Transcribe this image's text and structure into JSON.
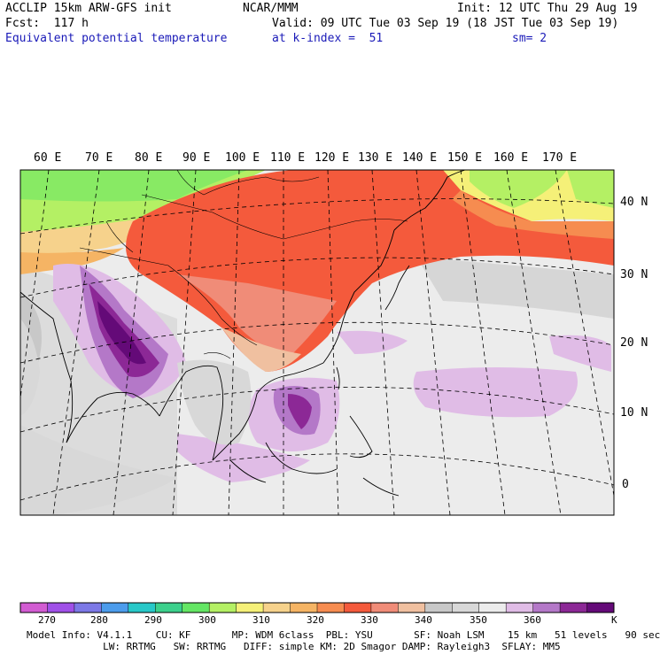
{
  "header": {
    "model": "ACCLIP 15km ARW-GFS init",
    "forecast": "Fcst:  117 h",
    "field": "Equivalent potential temperature",
    "org": "NCAR/MMM",
    "valid": "Valid: 09 UTC Tue 03 Sep 19 (18 JST Tue 03 Sep 19)",
    "level": "at k-index =  51",
    "init": "Init: 12 UTC Thu 29 Aug 19",
    "smoothing": "sm= 2"
  },
  "map": {
    "lon_labels": [
      "60 E",
      "70 E",
      "80 E",
      "90 E",
      "100 E",
      "110 E",
      "120 E",
      "130 E",
      "140 E",
      "150 E",
      "160 E",
      "170 E"
    ],
    "lat_labels": [
      "40 N",
      "30 N",
      "20 N",
      "10 N",
      "0"
    ]
  },
  "colorbar": {
    "unit": "K",
    "ticks": [
      "270",
      "280",
      "290",
      "300",
      "310",
      "320",
      "330",
      "340",
      "350",
      "360"
    ],
    "colors": [
      "#d25cd2",
      "#a050e8",
      "#7c78e6",
      "#4c9cec",
      "#28c8c8",
      "#3cd08c",
      "#64e664",
      "#b4f064",
      "#f5f078",
      "#f6d28c",
      "#f5b464",
      "#f68c50",
      "#f45a3c",
      "#f08c78",
      "#f0c0a0",
      "#c8c8c8",
      "#d8d8d8",
      "#ececec",
      "#e0bce6",
      "#b478c8",
      "#8c2896",
      "#640a78"
    ]
  },
  "footer": {
    "line1": "Model Info: V4.1.1    CU: KF       MP: WDM 6class  PBL: YSU       SF: Noah LSM    15 km   51 levels   90 sec",
    "line2": "             LW: RRTMG   SW: RRTMG   DIFF: simple KM: 2D Smagor DAMP: Rayleigh3  SFLAY: MM5"
  }
}
